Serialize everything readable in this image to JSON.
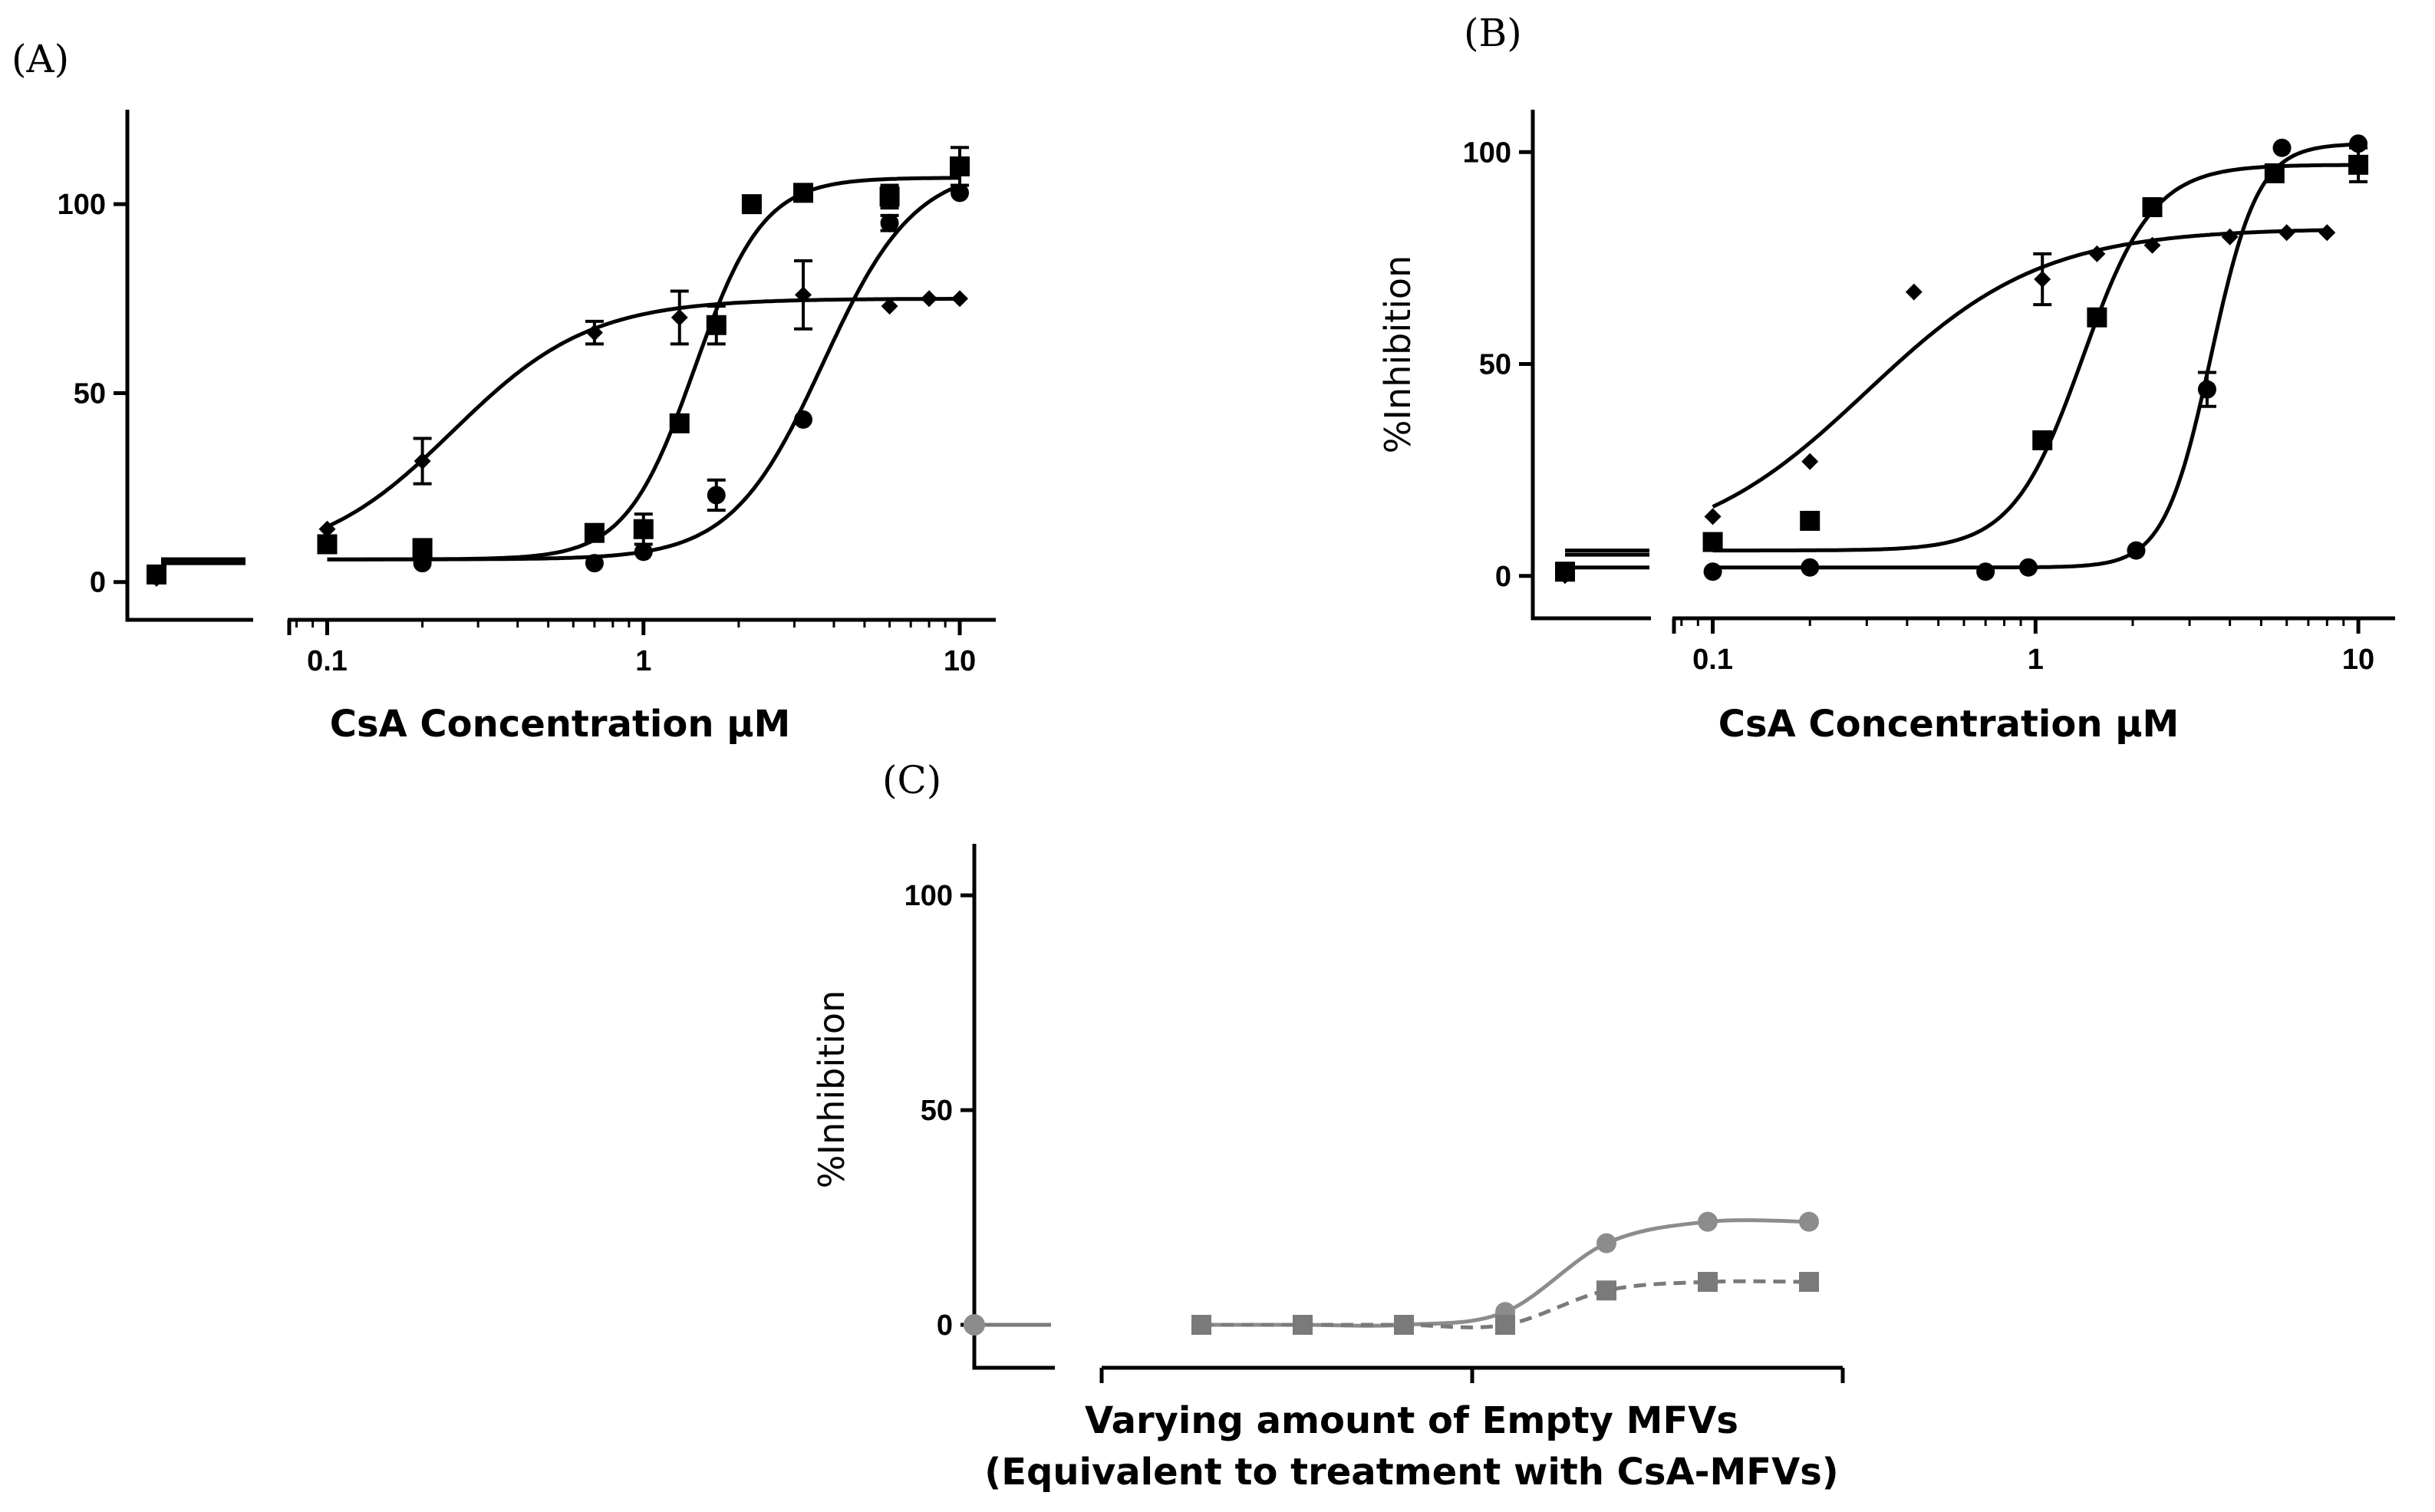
{
  "chart_data": [
    {
      "panel_label": "(A)",
      "type": "line",
      "xscale": "log",
      "xlabel": "CsA Concentration μM",
      "ylabel": "",
      "ylim": [
        -10,
        125
      ],
      "xlim_main": [
        0.075,
        13
      ],
      "y_ticks": [
        0,
        50,
        100
      ],
      "x_ticks": [
        0.1,
        1,
        10
      ],
      "x_tick_labels": [
        "0.1",
        "1",
        "10"
      ],
      "control_point": {
        "x": "control",
        "y": 2
      },
      "series": [
        {
          "name": "diamond",
          "marker": "diamond",
          "x": [
            0.1,
            0.2,
            0.7,
            1.3,
            3.2,
            6,
            8,
            10
          ],
          "y": [
            14,
            32,
            66,
            70,
            76,
            73,
            75,
            75
          ],
          "err": [
            0,
            6,
            3,
            7,
            9,
            0,
            0,
            0
          ],
          "curve": {
            "bottom": 5,
            "top": 75,
            "ec50": 0.25,
            "hill": 2.0,
            "x_start": 0.1,
            "x_end": 10
          }
        },
        {
          "name": "square",
          "marker": "square",
          "x": [
            0.1,
            0.2,
            0.7,
            1,
            1.3,
            1.7,
            2.2,
            3.2,
            6,
            10
          ],
          "y": [
            10,
            9,
            13,
            14,
            42,
            68,
            100,
            103,
            102,
            110
          ],
          "err": [
            0,
            0,
            0,
            4,
            0,
            5,
            0,
            0,
            3,
            5
          ],
          "curve": {
            "bottom": 6,
            "top": 107,
            "ec50": 1.45,
            "hill": 4.0,
            "x_start": 0.1,
            "x_end": 10
          }
        },
        {
          "name": "circle",
          "marker": "circle",
          "x": [
            0.2,
            0.7,
            1,
            1.7,
            3.2,
            6,
            10
          ],
          "y": [
            5,
            5,
            8,
            23,
            43,
            95,
            103
          ],
          "err": [
            0,
            0,
            0,
            4,
            0,
            2,
            0
          ],
          "curve": {
            "bottom": 6,
            "top": 110,
            "ec50": 3.7,
            "hill": 3.0,
            "x_start": 0.1,
            "x_end": 10
          }
        }
      ]
    },
    {
      "panel_label": "(B)",
      "type": "line",
      "xscale": "log",
      "xlabel": "CsA Concentration μM",
      "ylabel": "%Inhibition",
      "ylim": [
        -10,
        110
      ],
      "xlim_main": [
        0.075,
        13
      ],
      "y_ticks": [
        0,
        50,
        100
      ],
      "x_ticks": [
        0.1,
        1,
        10
      ],
      "x_tick_labels": [
        "0.1",
        "1",
        "10"
      ],
      "control_point": {
        "x": "control",
        "y": 1
      },
      "series": [
        {
          "name": "diamond",
          "marker": "diamond",
          "x": [
            0.1,
            0.2,
            0.42,
            1.05,
            1.55,
            2.3,
            4,
            6,
            8
          ],
          "y": [
            14,
            27,
            67,
            70,
            76,
            78,
            80,
            81,
            81
          ],
          "err": [
            0,
            0,
            0,
            6,
            0,
            0,
            0,
            0,
            0
          ],
          "curve": {
            "bottom": 5,
            "top": 82,
            "ec50": 0.3,
            "hill": 1.6,
            "x_start": 0.1,
            "x_end": 8
          }
        },
        {
          "name": "square",
          "marker": "square",
          "x": [
            0.1,
            0.2,
            1.05,
            1.55,
            2.3,
            5.5,
            10
          ],
          "y": [
            8,
            13,
            32,
            61,
            87,
            95,
            97
          ],
          "err": [
            0,
            0,
            0,
            0,
            0,
            0,
            4
          ],
          "curve": {
            "bottom": 6,
            "top": 97,
            "ec50": 1.4,
            "hill": 4.0,
            "x_start": 0.1,
            "x_end": 10
          }
        },
        {
          "name": "circle",
          "marker": "circle",
          "x": [
            0.1,
            0.2,
            0.7,
            0.95,
            2.05,
            3.4,
            5.8,
            10
          ],
          "y": [
            1,
            2,
            1,
            2,
            6,
            44,
            101,
            102
          ],
          "err": [
            0,
            0,
            0,
            0,
            0,
            4,
            0,
            0
          ],
          "curve": {
            "bottom": 2,
            "top": 102,
            "ec50": 3.5,
            "hill": 6.0,
            "x_start": 0.1,
            "x_end": 10
          }
        }
      ]
    },
    {
      "panel_label": "(C)",
      "type": "line",
      "xlabel": "Varying amount of Empty MFVs",
      "xlabel_line2": "(Equivalent to treatment with CsA-MFVs)",
      "ylabel": "%Inhibition",
      "ylim": [
        -10,
        112
      ],
      "y_ticks": [
        0,
        50,
        100
      ],
      "x_ticks": [
        0,
        1
      ],
      "control_point": {
        "x": "control",
        "y": 0
      },
      "series": [
        {
          "name": "circle",
          "marker": "circle",
          "line_style": "solid",
          "color": "#8c8c8c",
          "x": [
            1,
            2,
            3,
            4,
            5,
            6,
            7
          ],
          "y": [
            0,
            0,
            0,
            3,
            19,
            24,
            24
          ]
        },
        {
          "name": "square",
          "marker": "square",
          "line_style": "dashed",
          "color": "#7a7a7a",
          "x": [
            1,
            2,
            3,
            4,
            5,
            6,
            7
          ],
          "y": [
            0,
            0,
            0,
            0,
            8,
            10,
            10
          ]
        }
      ]
    }
  ]
}
